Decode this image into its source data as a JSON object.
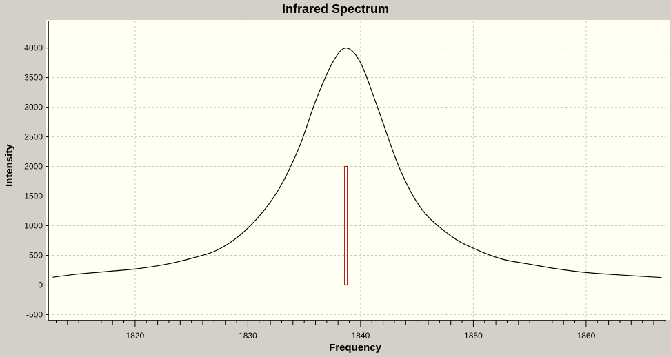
{
  "window": {
    "title": "Infrared Spectrum"
  },
  "chart_data": {
    "type": "line",
    "title": "Infrared Spectrum",
    "xlabel": "Frequency",
    "ylabel": "Intensity",
    "xlim": [
      1812.3,
      1867.1
    ],
    "ylim": [
      -600,
      4450
    ],
    "x_ticks": [
      1820,
      1830,
      1840,
      1850,
      1860
    ],
    "y_ticks": [
      -500,
      0,
      500,
      1000,
      1500,
      2000,
      2500,
      3000,
      3500,
      4000
    ],
    "grid": true,
    "series": [
      {
        "type": "line",
        "color": "#000000",
        "x": [
          1812.7,
          1815,
          1820,
          1822.5,
          1825,
          1827.5,
          1830,
          1832.5,
          1834.5,
          1836,
          1837.5,
          1838.7,
          1840,
          1841.5,
          1843.5,
          1845.5,
          1848,
          1850,
          1852.5,
          1855,
          1857.5,
          1860,
          1862.5,
          1865,
          1866.7
        ],
        "y": [
          130,
          185,
          270,
          340,
          450,
          610,
          960,
          1540,
          2300,
          3100,
          3750,
          4000,
          3750,
          3000,
          1950,
          1260,
          830,
          620,
          440,
          350,
          270,
          210,
          175,
          145,
          125
        ]
      },
      {
        "type": "stick",
        "color": "#b22222",
        "x": [
          1838.7
        ],
        "y": [
          2000
        ]
      }
    ]
  }
}
